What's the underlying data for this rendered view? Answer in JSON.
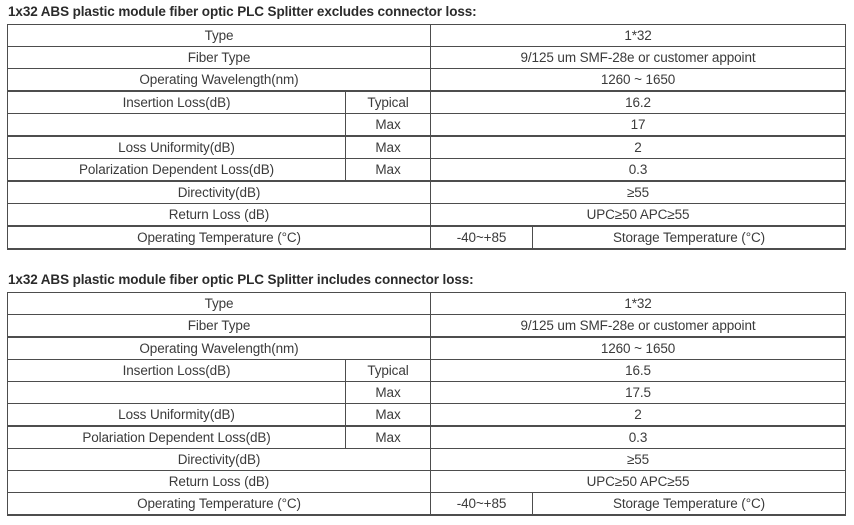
{
  "colors": {
    "background": "#ffffff",
    "border": "#4d4d4d",
    "cell_text": "#3b3b3b",
    "title_text": "#2b2b2b"
  },
  "tables": [
    {
      "title": "1x32 ABS plastic module fiber optic PLC Splitter excludes connector loss:",
      "rows": [
        {
          "label": "Type",
          "value": "1*32"
        },
        {
          "label": "Fiber Type",
          "value": "9/125 um SMF-28e or customer appoint"
        },
        {
          "label": "Operating Wavelength(nm)",
          "value": "1260 ~ 1650"
        },
        {
          "label": "Insertion Loss(dB)",
          "sub": "Typical",
          "value": "16.2"
        },
        {
          "label": "",
          "sub": "Max",
          "value": "17"
        },
        {
          "label": "Loss Uniformity(dB)",
          "sub": "Max",
          "value": "2"
        },
        {
          "label": "Polarization Dependent Loss(dB)",
          "sub": "Max",
          "value": "0.3"
        },
        {
          "label": "Directivity(dB)",
          "value": "≥55"
        },
        {
          "label": "Return Loss (dB)",
          "value": "UPC≥50 APC≥55"
        },
        {
          "label": "Operating Temperature (°C)",
          "value": "-40~+85",
          "value2": "Storage Temperature (°C)"
        }
      ]
    },
    {
      "title": "1x32 ABS plastic module fiber optic PLC Splitter includes connector loss:",
      "rows": [
        {
          "label": "Type",
          "value": "1*32"
        },
        {
          "label": "Fiber Type",
          "value": "9/125 um SMF-28e or customer appoint"
        },
        {
          "label": "Operating Wavelength(nm)",
          "value": "1260 ~ 1650"
        },
        {
          "label": "Insertion Loss(dB)",
          "sub": "Typical",
          "value": "16.5"
        },
        {
          "label": "",
          "sub": "Max",
          "value": "17.5"
        },
        {
          "label": "Loss Uniformity(dB)",
          "sub": "Max",
          "value": "2"
        },
        {
          "label": "Polariation Dependent Loss(dB)",
          "sub": "Max",
          "value": "0.3"
        },
        {
          "label": "Directivity(dB)",
          "value": "≥55"
        },
        {
          "label": "Return Loss (dB)",
          "value": "UPC≥50 APC≥55"
        },
        {
          "label": "Operating Temperature (°C)",
          "value": "-40~+85",
          "value2": "Storage Temperature (°C)"
        }
      ]
    }
  ]
}
